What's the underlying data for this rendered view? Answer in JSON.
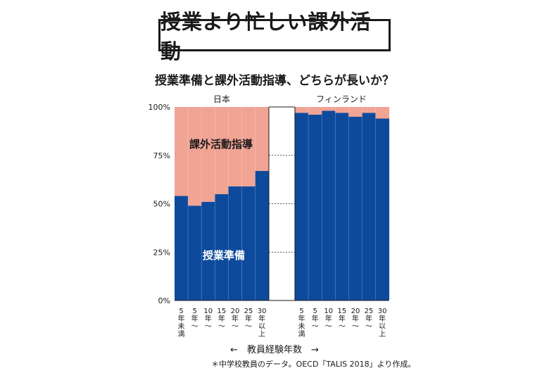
{
  "headline": "授業より忙しい課外活動",
  "chart_data": {
    "type": "bar",
    "stacked": true,
    "title": "授業準備と課外活動指導、どちらが長いか？",
    "ylim": [
      0,
      100
    ],
    "yticks": [
      "0%",
      "25%",
      "50%",
      "75%",
      "100%"
    ],
    "categories": [
      "5年未満",
      "5年〜",
      "10年〜",
      "15年〜",
      "20年〜",
      "25年〜",
      "30年以上"
    ],
    "panels": [
      {
        "name": "日本",
        "series": [
          {
            "name": "授業準備",
            "values": [
              54,
              49,
              51,
              55,
              59,
              59,
              67
            ]
          },
          {
            "name": "課外活動指導",
            "values": [
              46,
              51,
              49,
              45,
              41,
              41,
              33
            ]
          }
        ]
      },
      {
        "name": "フィンランド",
        "series": [
          {
            "name": "授業準備",
            "values": [
              97,
              96,
              98,
              97,
              95,
              97,
              94
            ]
          },
          {
            "name": "課外活動指導",
            "values": [
              3,
              4,
              2,
              3,
              5,
              3,
              6
            ]
          }
        ]
      }
    ],
    "xlabel": "←　教員経験年数　→",
    "colors": {
      "授業準備": "#0e4a9c",
      "課外活動指導": "#f1a394"
    },
    "grid": "dashed lines in gap between panels"
  },
  "note": "＊中学校教員のデータ。OECD「TALIS 2018」より作成。"
}
